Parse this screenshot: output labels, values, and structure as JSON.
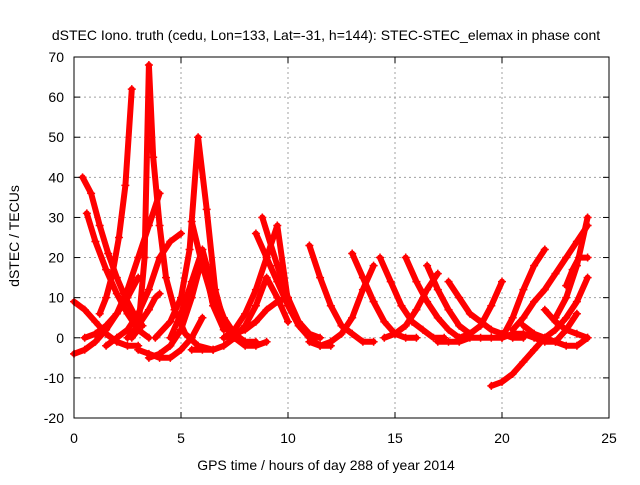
{
  "chart_data": {
    "type": "scatter",
    "title": "dSTEC Iono. truth (cedu, Lon=133, Lat=-31, h=144): STEC-STEC_elemax in phase cont",
    "xlabel": "GPS time / hours of day 288 of year 2014",
    "ylabel": "dSTEC  / TECUs",
    "xlim": [
      0,
      25
    ],
    "ylim": [
      -20,
      70
    ],
    "x_ticks": [
      0,
      5,
      10,
      15,
      20,
      25
    ],
    "y_ticks": [
      -20,
      -10,
      0,
      10,
      20,
      30,
      40,
      50,
      60,
      70
    ],
    "grid": true,
    "legend": "none",
    "marker": "plus",
    "colors": {
      "series": "#ff0000",
      "axes": "#000000",
      "grid": "#a0a0a0"
    },
    "series": [
      {
        "x": [
          0.0,
          0.5,
          1.0,
          1.5,
          2.0,
          2.5,
          3.0,
          3.5,
          4.0
        ],
        "y": [
          -4,
          -3,
          -1,
          2,
          6,
          12,
          20,
          28,
          36
        ]
      },
      {
        "x": [
          0.0,
          0.5,
          1.0,
          1.5,
          2.0,
          2.5,
          3.0
        ],
        "y": [
          9,
          7,
          4,
          1,
          -1,
          -2,
          -2
        ]
      },
      {
        "x": [
          0.4,
          0.8,
          1.2,
          1.6,
          2.0,
          2.4,
          2.8,
          3.2
        ],
        "y": [
          40,
          36,
          28,
          21,
          15,
          10,
          6,
          3
        ]
      },
      {
        "x": [
          0.6,
          1.0,
          1.5,
          2.0,
          2.5,
          3.0,
          3.5
        ],
        "y": [
          31,
          24,
          17,
          11,
          6,
          2,
          0
        ]
      },
      {
        "x": [
          0.5,
          1.0,
          1.5,
          2.0,
          2.5,
          3.0
        ],
        "y": [
          0,
          1,
          3,
          6,
          10,
          15
        ]
      },
      {
        "x": [
          1.2,
          1.5,
          1.8,
          2.1,
          2.4,
          2.7
        ],
        "y": [
          6,
          10,
          16,
          25,
          38,
          62
        ]
      },
      {
        "x": [
          2.7,
          3.0,
          3.3,
          3.5,
          3.7,
          4.0,
          4.3,
          4.7,
          5.2,
          5.8,
          6.5
        ],
        "y": [
          0,
          2,
          20,
          68,
          45,
          28,
          15,
          7,
          1,
          -2,
          -3
        ]
      },
      {
        "x": [
          1.5,
          2.0,
          2.5,
          3.0,
          3.5,
          4.0,
          4.5,
          5.0
        ],
        "y": [
          -2,
          0,
          2,
          6,
          12,
          20,
          24,
          26
        ]
      },
      {
        "x": [
          2.5,
          3.0,
          3.5,
          3.8,
          4.0
        ],
        "y": [
          0,
          3,
          7,
          10,
          11
        ]
      },
      {
        "x": [
          3.0,
          3.5,
          4.0,
          4.5,
          5.0,
          5.5,
          6.0
        ],
        "y": [
          -3,
          -4,
          -5,
          -5,
          -3,
          0,
          5
        ]
      },
      {
        "x": [
          3.5,
          4.0,
          4.5,
          5.0,
          5.5,
          6.0,
          6.5,
          7.0
        ],
        "y": [
          -5,
          -4,
          -2,
          2,
          10,
          20,
          8,
          2
        ]
      },
      {
        "x": [
          3.8,
          4.5,
          5.0,
          5.4,
          5.8,
          6.2,
          6.6,
          7.0
        ],
        "y": [
          0,
          4,
          10,
          22,
          50,
          32,
          12,
          4
        ]
      },
      {
        "x": [
          4.5,
          5.0,
          5.5,
          6.0,
          6.5,
          7.0,
          7.5,
          8.0,
          8.5
        ],
        "y": [
          0,
          6,
          14,
          22,
          12,
          5,
          1,
          -1,
          -1
        ]
      },
      {
        "x": [
          5.5,
          6.0,
          6.5,
          7.0,
          7.5,
          8.0,
          8.5,
          9.0
        ],
        "y": [
          29,
          18,
          9,
          3,
          0,
          -2,
          -2,
          -1
        ]
      },
      {
        "x": [
          5.5,
          6.0,
          6.5,
          7.0,
          7.5,
          8.0,
          8.5,
          9.0,
          9.5,
          10.0
        ],
        "y": [
          -3,
          -3,
          -3,
          -2,
          0,
          3,
          8,
          15,
          10,
          4
        ]
      },
      {
        "x": [
          7.0,
          7.5,
          8.0,
          8.5,
          9.0,
          9.5,
          10.0
        ],
        "y": [
          0,
          2,
          6,
          12,
          20,
          28,
          9
        ]
      },
      {
        "x": [
          7.0,
          7.5,
          8.0,
          8.5,
          9.0,
          9.5,
          10.0
        ],
        "y": [
          0,
          1,
          2,
          4,
          7,
          9,
          10
        ]
      },
      {
        "x": [
          8.5,
          9.0,
          9.5,
          10.0,
          10.5,
          11.0,
          11.5,
          12.0
        ],
        "y": [
          26,
          20,
          14,
          8,
          3,
          0,
          -2,
          -2
        ]
      },
      {
        "x": [
          8.8,
          9.5,
          10.0,
          10.5,
          11.0,
          11.5
        ],
        "y": [
          30,
          18,
          10,
          4,
          1,
          0
        ]
      },
      {
        "x": [
          11.0,
          11.5,
          12.0,
          12.5,
          13.0,
          13.5,
          14.0
        ],
        "y": [
          23,
          15,
          8,
          3,
          1,
          -1,
          -1
        ]
      },
      {
        "x": [
          11.0,
          11.5,
          12.0,
          12.5,
          13.0,
          13.5,
          14.0
        ],
        "y": [
          -1,
          -2,
          -1,
          1,
          5,
          12,
          18
        ]
      },
      {
        "x": [
          13.0,
          13.5,
          14.0,
          14.5,
          15.0,
          15.5,
          16.0
        ],
        "y": [
          21,
          15,
          9,
          4,
          1,
          0,
          0
        ]
      },
      {
        "x": [
          14.3,
          14.8,
          15.3,
          15.8,
          16.3,
          16.8,
          17.3
        ],
        "y": [
          20,
          14,
          8,
          4,
          2,
          0,
          0
        ]
      },
      {
        "x": [
          15.5,
          16.0,
          16.5,
          17.0,
          17.5,
          18.0
        ],
        "y": [
          20,
          14,
          9,
          5,
          2,
          0
        ]
      },
      {
        "x": [
          14.5,
          15.0,
          15.5,
          16.0,
          16.5,
          17.0
        ],
        "y": [
          0,
          1,
          3,
          7,
          12,
          16
        ]
      },
      {
        "x": [
          16.5,
          17.0,
          17.5,
          18.0,
          18.5
        ],
        "y": [
          18,
          12,
          7,
          3,
          1
        ]
      },
      {
        "x": [
          17.5,
          18.0,
          18.5,
          19.0,
          19.5,
          20.0,
          20.5,
          21.0
        ],
        "y": [
          14,
          10,
          6,
          4,
          2,
          1,
          0,
          0
        ]
      },
      {
        "x": [
          18.0,
          18.5,
          19.0,
          19.5,
          20.0
        ],
        "y": [
          0,
          1,
          3,
          8,
          14
        ]
      },
      {
        "x": [
          17.0,
          17.5,
          18.0,
          18.5,
          19.0,
          19.5,
          20.0,
          20.5,
          21.0,
          21.5,
          22.0,
          22.5,
          23.0,
          23.5,
          24.0
        ],
        "y": [
          -1,
          -1,
          -1,
          0,
          0,
          0,
          0,
          1,
          1,
          0,
          -1,
          -1,
          -2,
          -2,
          0
        ]
      },
      {
        "x": [
          19.5,
          20.0,
          20.5,
          21.0,
          21.5,
          22.0,
          22.5,
          23.0,
          23.5,
          24.0
        ],
        "y": [
          -12,
          -11,
          -9,
          -6,
          -3,
          0,
          2,
          5,
          9,
          15
        ]
      },
      {
        "x": [
          20.0,
          20.5,
          21.0,
          21.5,
          22.0
        ],
        "y": [
          0,
          5,
          12,
          18,
          22
        ]
      },
      {
        "x": [
          20.5,
          21.0,
          21.5,
          22.0,
          22.5,
          23.0,
          23.5,
          24.0
        ],
        "y": [
          2,
          5,
          9,
          12,
          16,
          20,
          24,
          28
        ]
      },
      {
        "x": [
          21.0,
          21.5,
          22.0,
          22.5,
          23.0,
          23.5
        ],
        "y": [
          3,
          1,
          0,
          -1,
          2,
          6
        ]
      },
      {
        "x": [
          22.0,
          22.5,
          23.0,
          23.5,
          24.0
        ],
        "y": [
          7,
          4,
          2,
          1,
          0
        ]
      },
      {
        "x": [
          22.5,
          23.0,
          23.5,
          24.0
        ],
        "y": [
          5,
          10,
          18,
          30
        ]
      },
      {
        "x": [
          23.0,
          23.3,
          23.6,
          24.0
        ],
        "y": [
          13,
          17,
          20,
          20
        ]
      }
    ]
  }
}
